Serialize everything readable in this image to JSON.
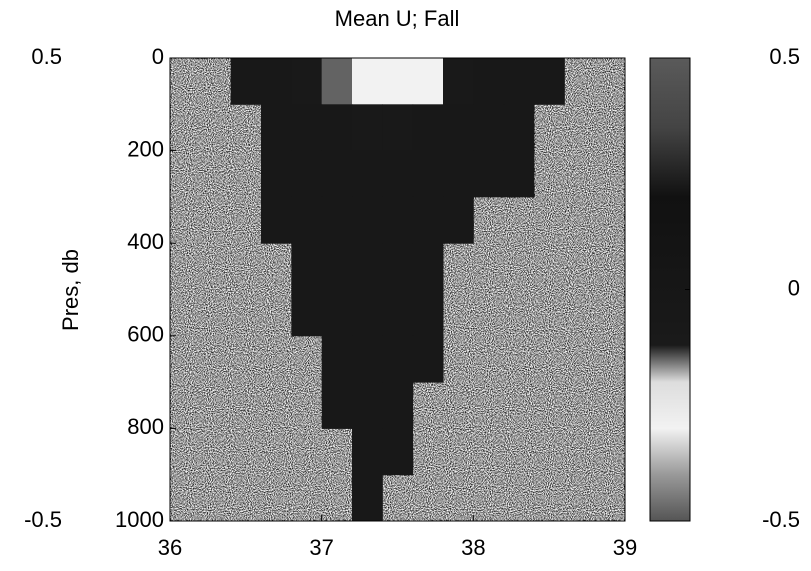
{
  "chart_data": {
    "type": "heatmap",
    "title": "Mean U; Fall",
    "ylabel": "Pres, db",
    "x": [
      36.1,
      36.3,
      36.5,
      36.7,
      36.9,
      37.1,
      37.3,
      37.5,
      37.7,
      37.9,
      38.1,
      38.3,
      38.5,
      38.7,
      38.9
    ],
    "y": [
      50,
      150,
      250,
      350,
      450,
      550,
      650,
      750,
      850,
      950
    ],
    "values": [
      [
        null,
        null,
        -0.05,
        -0.05,
        -0.1,
        -0.15,
        -0.3,
        -0.3,
        -0.3,
        -0.1,
        -0.05,
        -0.05,
        -0.05,
        null,
        null
      ],
      [
        null,
        null,
        null,
        -0.05,
        -0.05,
        -0.05,
        -0.1,
        -0.1,
        -0.05,
        -0.05,
        -0.05,
        -0.05,
        null,
        null,
        null
      ],
      [
        null,
        null,
        null,
        -0.05,
        -0.05,
        -0.05,
        -0.05,
        -0.05,
        -0.05,
        -0.05,
        -0.05,
        -0.05,
        null,
        null,
        null
      ],
      [
        null,
        null,
        null,
        -0.05,
        -0.05,
        -0.05,
        -0.05,
        -0.05,
        -0.05,
        -0.05,
        null,
        null,
        null,
        null,
        null
      ],
      [
        null,
        null,
        null,
        null,
        -0.05,
        -0.05,
        -0.05,
        -0.05,
        -0.05,
        null,
        null,
        null,
        null,
        null,
        null
      ],
      [
        null,
        null,
        null,
        null,
        -0.05,
        -0.05,
        -0.05,
        -0.05,
        -0.05,
        null,
        null,
        null,
        null,
        null,
        null
      ],
      [
        null,
        null,
        null,
        null,
        null,
        -0.05,
        -0.05,
        -0.05,
        -0.05,
        null,
        null,
        null,
        null,
        null,
        null
      ],
      [
        null,
        null,
        null,
        null,
        null,
        -0.05,
        -0.05,
        -0.05,
        null,
        null,
        null,
        null,
        null,
        null,
        null
      ],
      [
        null,
        null,
        null,
        null,
        null,
        null,
        -0.05,
        -0.05,
        null,
        null,
        null,
        null,
        null,
        null,
        null
      ],
      [
        null,
        null,
        null,
        null,
        null,
        null,
        -0.05,
        null,
        null,
        null,
        null,
        null,
        null,
        null,
        null
      ]
    ],
    "xlim": [
      36,
      39
    ],
    "xticks": [
      36,
      37,
      38,
      39
    ],
    "ylim": [
      1000,
      0
    ],
    "yticks": [
      0,
      200,
      400,
      600,
      800,
      1000
    ],
    "y2lim": [
      -0.5,
      0.5
    ],
    "y2ticks": [
      -0.5,
      0.5
    ],
    "y2_side": "left",
    "colorscale": [
      [
        -0.5,
        "#555555"
      ],
      [
        -0.4,
        "#999999"
      ],
      [
        -0.3,
        "#f2f2f2"
      ],
      [
        -0.2,
        "#dddddd"
      ],
      [
        -0.12,
        "#1a1a1a"
      ],
      [
        0.2,
        "#111111"
      ],
      [
        0.35,
        "#444444"
      ],
      [
        0.5,
        "#5a5a5a"
      ]
    ],
    "colorbar": {
      "lim": [
        -0.5,
        0.5
      ],
      "ticks": [
        -0.5,
        0,
        0.5
      ]
    }
  }
}
